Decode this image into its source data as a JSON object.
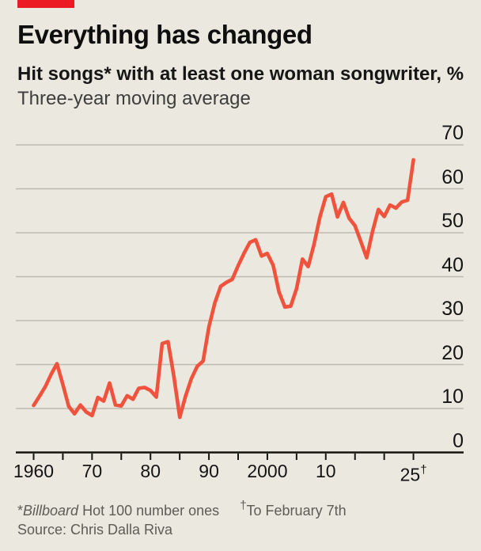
{
  "header": {
    "title": "Everything has changed",
    "subtitle": "Hit songs* with at least one woman songwriter, %",
    "subtitle2": "Three-year moving average",
    "tag_color": "#ec1b23"
  },
  "chart_data": {
    "type": "line",
    "title": "Hit songs with at least one woman songwriter, %",
    "subtitle": "Three-year moving average",
    "x": [
      1960,
      1961,
      1962,
      1963,
      1964,
      1965,
      1966,
      1967,
      1968,
      1969,
      1970,
      1971,
      1972,
      1973,
      1974,
      1975,
      1976,
      1977,
      1978,
      1979,
      1980,
      1981,
      1982,
      1983,
      1984,
      1985,
      1986,
      1987,
      1988,
      1989,
      1990,
      1991,
      1992,
      1993,
      1994,
      1995,
      1996,
      1997,
      1998,
      1999,
      2000,
      2001,
      2002,
      2003,
      2004,
      2005,
      2006,
      2007,
      2008,
      2009,
      2010,
      2011,
      2012,
      2013,
      2014,
      2015,
      2016,
      2017,
      2018,
      2019,
      2020,
      2021,
      2022,
      2023,
      2024,
      2025
    ],
    "values": [
      10.7,
      12.8,
      15.0,
      17.8,
      20.2,
      15.5,
      10.5,
      8.8,
      10.8,
      9.2,
      8.4,
      12.5,
      11.7,
      15.8,
      10.8,
      10.6,
      12.9,
      12.1,
      14.6,
      14.8,
      14.1,
      12.6,
      24.8,
      25.2,
      17.3,
      8.0,
      12.8,
      16.8,
      19.6,
      20.8,
      28.6,
      34.0,
      37.8,
      38.7,
      39.4,
      42.5,
      45.3,
      47.8,
      48.4,
      44.7,
      45.3,
      42.6,
      36.5,
      33.1,
      33.3,
      37.3,
      44.0,
      42.3,
      47.4,
      53.6,
      58.2,
      58.8,
      53.6,
      56.9,
      53.3,
      51.6,
      48.0,
      44.3,
      50.3,
      55.3,
      53.7,
      56.3,
      55.6,
      57.0,
      57.4,
      66.6
    ],
    "series_color": "#f0533d",
    "ylim": [
      0,
      70
    ],
    "y_ticks": [
      0,
      10,
      20,
      30,
      40,
      50,
      60,
      70
    ],
    "y_tick_labels": [
      "0",
      "10",
      "20",
      "30",
      "40",
      "50",
      "60",
      "70"
    ],
    "x_tick_years": [
      1960,
      1965,
      1970,
      1975,
      1980,
      1985,
      1990,
      1995,
      2000,
      2005,
      2010,
      2015,
      2020,
      2025
    ],
    "x_tick_labels": [
      "1960",
      "",
      "70",
      "",
      "80",
      "",
      "90",
      "",
      "2000",
      "",
      "10",
      "",
      "",
      "25†"
    ],
    "grid": "horizontal",
    "legend": "none",
    "grid_color": "#bcbbb2",
    "axis_color": "#15150f"
  },
  "footer": {
    "note1_star": "*",
    "note1_italic": "Billboard",
    "note1_rest": " Hot 100 number ones",
    "note2_dagger": "†",
    "note2_text": "To February 7th",
    "source": "Source: Chris Dalla Riva"
  }
}
